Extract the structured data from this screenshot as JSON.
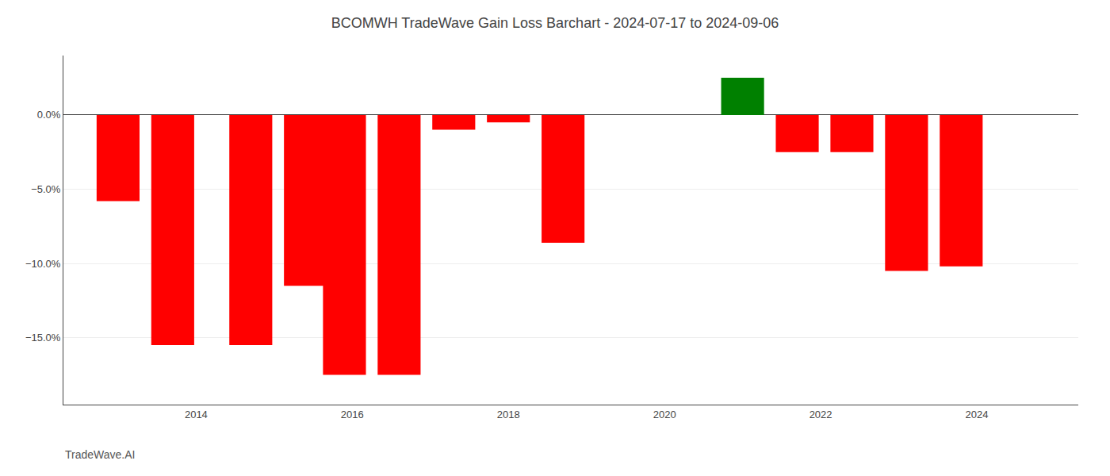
{
  "chart_data": {
    "type": "bar",
    "title": "BCOMWH TradeWave Gain Loss Barchart - 2024-07-17 to 2024-09-06",
    "annotations": [
      "TradeWave.AI"
    ],
    "x": [
      2013.0,
      2013.7,
      2014.7,
      2015.4,
      2015.9,
      2016.6,
      2017.3,
      2018.0,
      2018.7,
      2021.0,
      2021.7,
      2022.4,
      2023.1,
      2023.8
    ],
    "values": [
      -5.8,
      -15.5,
      -15.5,
      -11.5,
      -17.5,
      -17.5,
      -1.0,
      -0.5,
      -8.6,
      2.5,
      -2.5,
      -2.5,
      -10.5,
      -10.2
    ],
    "colors": [
      "#FF0000",
      "#FF0000",
      "#FF0000",
      "#FF0000",
      "#FF0000",
      "#FF0000",
      "#FF0000",
      "#FF0000",
      "#FF0000",
      "#008000",
      "#FF0000",
      "#FF0000",
      "#FF0000",
      "#FF0000"
    ],
    "xlim": [
      2012.3,
      2025.3
    ],
    "xticks": [
      2014,
      2016,
      2018,
      2020,
      2022,
      2024
    ],
    "ylim": [
      -19.5,
      4.0
    ],
    "yticks": [
      {
        "value": 0.0,
        "label": "0.0%"
      },
      {
        "value": -5.0,
        "label": "−5.0%"
      },
      {
        "value": -10.0,
        "label": "−10.0%"
      },
      {
        "value": -15.0,
        "label": "−15.0%"
      }
    ],
    "grid": true
  }
}
